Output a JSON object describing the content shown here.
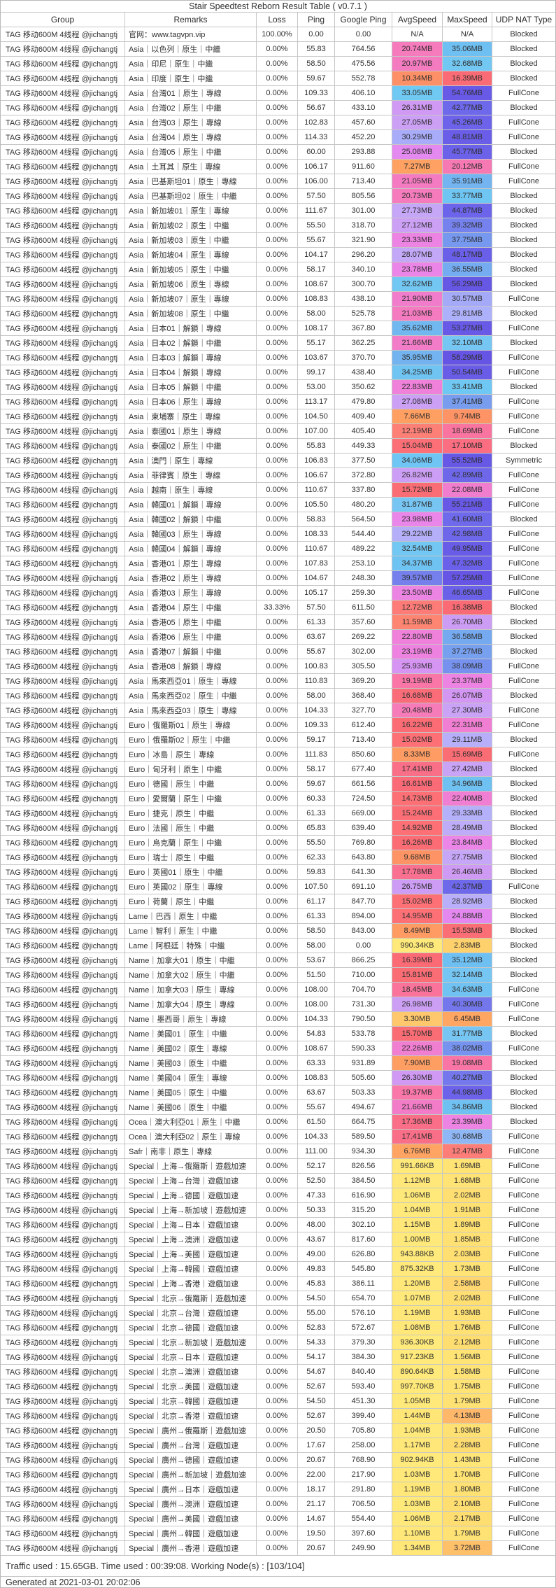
{
  "title": "Stair Speedtest Reborn Result Table ( v0.7.1 )",
  "columns": [
    "Group",
    "Remarks",
    "Loss",
    "Ping",
    "Google Ping",
    "AvgSpeed",
    "MaxSpeed",
    "UDP NAT Type"
  ],
  "group_name": "TAG 移动600M 4线程 @jichangtj",
  "rows": [
    [
      "官网：www.tagvpn.vip",
      "100.00%",
      "0.00",
      "0.00",
      "N/A",
      "N/A",
      "Blocked"
    ],
    [
      "Asia｜以色列｜原生｜中繼",
      "0.00%",
      "55.83",
      "764.56",
      "20.74MB",
      "35.06MB",
      "Blocked"
    ],
    [
      "Asia｜印尼｜原生｜中繼",
      "0.00%",
      "58.50",
      "475.56",
      "20.97MB",
      "32.68MB",
      "Blocked"
    ],
    [
      "Asia｜印度｜原生｜中繼",
      "0.00%",
      "59.67",
      "552.78",
      "10.34MB",
      "16.39MB",
      "Blocked"
    ],
    [
      "Asia｜台灣01｜原生｜專線",
      "0.00%",
      "109.33",
      "406.10",
      "33.05MB",
      "54.76MB",
      "FullCone"
    ],
    [
      "Asia｜台灣02｜原生｜中繼",
      "0.00%",
      "56.67",
      "433.10",
      "26.31MB",
      "42.77MB",
      "Blocked"
    ],
    [
      "Asia｜台灣03｜原生｜專線",
      "0.00%",
      "102.83",
      "457.60",
      "27.05MB",
      "45.26MB",
      "FullCone"
    ],
    [
      "Asia｜台灣04｜原生｜專線",
      "0.00%",
      "114.33",
      "452.20",
      "30.29MB",
      "48.81MB",
      "FullCone"
    ],
    [
      "Asia｜台灣05｜原生｜中繼",
      "0.00%",
      "60.00",
      "293.88",
      "25.08MB",
      "45.77MB",
      "Blocked"
    ],
    [
      "Asia｜土耳其｜原生｜專線",
      "0.00%",
      "106.17",
      "911.60",
      "7.27MB",
      "20.12MB",
      "FullCone"
    ],
    [
      "Asia｜巴基斯坦01｜原生｜專線",
      "0.00%",
      "106.00",
      "713.40",
      "21.05MB",
      "35.91MB",
      "FullCone"
    ],
    [
      "Asia｜巴基斯坦02｜原生｜中繼",
      "0.00%",
      "57.50",
      "805.56",
      "20.73MB",
      "33.77MB",
      "Blocked"
    ],
    [
      "Asia｜新加坡01｜原生｜專線",
      "0.00%",
      "111.67",
      "301.00",
      "27.73MB",
      "44.87MB",
      "Blocked"
    ],
    [
      "Asia｜新加坡02｜原生｜中繼",
      "0.00%",
      "55.50",
      "318.70",
      "27.12MB",
      "39.32MB",
      "Blocked"
    ],
    [
      "Asia｜新加坡03｜原生｜中繼",
      "0.00%",
      "55.67",
      "321.90",
      "23.33MB",
      "37.75MB",
      "Blocked"
    ],
    [
      "Asia｜新加坡04｜原生｜專線",
      "0.00%",
      "104.17",
      "296.20",
      "28.07MB",
      "48.17MB",
      "Blocked"
    ],
    [
      "Asia｜新加坡05｜原生｜中繼",
      "0.00%",
      "58.17",
      "340.10",
      "23.78MB",
      "36.55MB",
      "Blocked"
    ],
    [
      "Asia｜新加坡06｜原生｜專線",
      "0.00%",
      "108.67",
      "300.70",
      "32.62MB",
      "56.29MB",
      "Blocked"
    ],
    [
      "Asia｜新加坡07｜原生｜專線",
      "0.00%",
      "108.83",
      "438.10",
      "21.90MB",
      "30.57MB",
      "FullCone"
    ],
    [
      "Asia｜新加坡08｜原生｜中繼",
      "0.00%",
      "58.00",
      "525.78",
      "21.03MB",
      "29.81MB",
      "Blocked"
    ],
    [
      "Asia｜日本01｜解鎖｜專線",
      "0.00%",
      "108.17",
      "367.80",
      "35.62MB",
      "53.27MB",
      "FullCone"
    ],
    [
      "Asia｜日本02｜解鎖｜中繼",
      "0.00%",
      "55.17",
      "362.25",
      "21.66MB",
      "32.10MB",
      "Blocked"
    ],
    [
      "Asia｜日本03｜解鎖｜專線",
      "0.00%",
      "103.67",
      "370.70",
      "35.95MB",
      "58.29MB",
      "FullCone"
    ],
    [
      "Asia｜日本04｜解鎖｜專線",
      "0.00%",
      "99.17",
      "438.40",
      "34.25MB",
      "50.54MB",
      "FullCone"
    ],
    [
      "Asia｜日本05｜解鎖｜中繼",
      "0.00%",
      "53.00",
      "350.62",
      "22.83MB",
      "33.41MB",
      "Blocked"
    ],
    [
      "Asia｜日本06｜原生｜專線",
      "0.00%",
      "113.17",
      "479.80",
      "27.08MB",
      "37.41MB",
      "FullCone"
    ],
    [
      "Asia｜柬埔寨｜原生｜專線",
      "0.00%",
      "104.50",
      "409.40",
      "7.66MB",
      "9.74MB",
      "FullCone"
    ],
    [
      "Asia｜泰國01｜原生｜專線",
      "0.00%",
      "107.00",
      "405.40",
      "12.19MB",
      "18.69MB",
      "FullCone"
    ],
    [
      "Asia｜泰國02｜原生｜中繼",
      "0.00%",
      "55.83",
      "449.33",
      "15.04MB",
      "17.10MB",
      "Blocked"
    ],
    [
      "Asia｜澳門｜原生｜專線",
      "0.00%",
      "106.83",
      "377.50",
      "34.06MB",
      "55.52MB",
      "Symmetric"
    ],
    [
      "Asia｜菲律賓｜原生｜專線",
      "0.00%",
      "106.67",
      "372.80",
      "26.82MB",
      "42.89MB",
      "FullCone"
    ],
    [
      "Asia｜越南｜原生｜專線",
      "0.00%",
      "110.67",
      "337.80",
      "15.72MB",
      "22.08MB",
      "FullCone"
    ],
    [
      "Asia｜韓國01｜解鎖｜專線",
      "0.00%",
      "105.50",
      "480.20",
      "31.87MB",
      "55.21MB",
      "FullCone"
    ],
    [
      "Asia｜韓國02｜解鎖｜中繼",
      "0.00%",
      "58.83",
      "564.50",
      "23.98MB",
      "41.60MB",
      "Blocked"
    ],
    [
      "Asia｜韓國03｜原生｜專線",
      "0.00%",
      "108.33",
      "544.40",
      "29.22MB",
      "42.98MB",
      "FullCone"
    ],
    [
      "Asia｜韓國04｜解鎖｜專線",
      "0.00%",
      "110.67",
      "489.22",
      "32.54MB",
      "49.95MB",
      "FullCone"
    ],
    [
      "Asia｜香港01｜原生｜專線",
      "0.00%",
      "107.83",
      "253.10",
      "34.37MB",
      "47.32MB",
      "FullCone"
    ],
    [
      "Asia｜香港02｜原生｜專線",
      "0.00%",
      "104.67",
      "248.30",
      "39.57MB",
      "57.25MB",
      "FullCone"
    ],
    [
      "Asia｜香港03｜原生｜專線",
      "0.00%",
      "105.17",
      "259.30",
      "23.50MB",
      "46.65MB",
      "FullCone"
    ],
    [
      "Asia｜香港04｜原生｜中繼",
      "33.33%",
      "57.50",
      "611.50",
      "12.72MB",
      "16.38MB",
      "Blocked"
    ],
    [
      "Asia｜香港05｜原生｜中繼",
      "0.00%",
      "61.33",
      "357.60",
      "11.59MB",
      "26.70MB",
      "Blocked"
    ],
    [
      "Asia｜香港06｜原生｜中繼",
      "0.00%",
      "63.67",
      "269.22",
      "22.80MB",
      "36.58MB",
      "Blocked"
    ],
    [
      "Asia｜香港07｜解鎖｜中繼",
      "0.00%",
      "55.67",
      "302.00",
      "23.19MB",
      "37.27MB",
      "Blocked"
    ],
    [
      "Asia｜香港08｜解鎖｜專線",
      "0.00%",
      "100.83",
      "305.50",
      "25.93MB",
      "38.09MB",
      "FullCone"
    ],
    [
      "Asia｜馬來西亞01｜原生｜專線",
      "0.00%",
      "110.83",
      "369.20",
      "19.19MB",
      "23.37MB",
      "FullCone"
    ],
    [
      "Asia｜馬來西亞02｜原生｜中繼",
      "0.00%",
      "58.00",
      "368.40",
      "16.68MB",
      "26.07MB",
      "Blocked"
    ],
    [
      "Asia｜馬來西亞03｜原生｜專線",
      "0.00%",
      "104.33",
      "327.70",
      "20.48MB",
      "27.30MB",
      "FullCone"
    ],
    [
      "Euro｜俄羅斯01｜原生｜專線",
      "0.00%",
      "109.33",
      "612.40",
      "16.22MB",
      "22.31MB",
      "FullCone"
    ],
    [
      "Euro｜俄羅斯02｜原生｜中繼",
      "0.00%",
      "59.17",
      "713.40",
      "15.02MB",
      "29.11MB",
      "Blocked"
    ],
    [
      "Euro｜冰島｜原生｜專線",
      "0.00%",
      "111.83",
      "850.60",
      "8.33MB",
      "15.69MB",
      "FullCone"
    ],
    [
      "Euro｜匈牙利｜原生｜中繼",
      "0.00%",
      "58.17",
      "677.40",
      "17.41MB",
      "27.42MB",
      "Blocked"
    ],
    [
      "Euro｜德國｜原生｜中繼",
      "0.00%",
      "59.67",
      "661.56",
      "16.61MB",
      "34.96MB",
      "Blocked"
    ],
    [
      "Euro｜愛爾蘭｜原生｜中繼",
      "0.00%",
      "60.33",
      "724.50",
      "14.73MB",
      "22.40MB",
      "Blocked"
    ],
    [
      "Euro｜捷克｜原生｜中繼",
      "0.00%",
      "61.33",
      "669.00",
      "15.24MB",
      "29.33MB",
      "Blocked"
    ],
    [
      "Euro｜法國｜原生｜中繼",
      "0.00%",
      "65.83",
      "639.40",
      "14.92MB",
      "28.49MB",
      "Blocked"
    ],
    [
      "Euro｜烏克蘭｜原生｜中繼",
      "0.00%",
      "55.50",
      "769.80",
      "16.26MB",
      "23.84MB",
      "Blocked"
    ],
    [
      "Euro｜瑞士｜原生｜中繼",
      "0.00%",
      "62.33",
      "643.80",
      "9.68MB",
      "27.75MB",
      "Blocked"
    ],
    [
      "Euro｜英國01｜原生｜中繼",
      "0.00%",
      "59.83",
      "641.30",
      "17.78MB",
      "26.46MB",
      "Blocked"
    ],
    [
      "Euro｜英國02｜原生｜專線",
      "0.00%",
      "107.50",
      "691.10",
      "26.75MB",
      "42.37MB",
      "FullCone"
    ],
    [
      "Euro｜荷蘭｜原生｜中繼",
      "0.00%",
      "61.17",
      "847.70",
      "15.02MB",
      "28.92MB",
      "Blocked"
    ],
    [
      "Lame｜巴西｜原生｜中繼",
      "0.00%",
      "61.33",
      "894.00",
      "14.95MB",
      "24.88MB",
      "Blocked"
    ],
    [
      "Lame｜智利｜原生｜中繼",
      "0.00%",
      "58.50",
      "843.00",
      "8.49MB",
      "15.53MB",
      "Blocked"
    ],
    [
      "Lame｜阿根廷｜特殊｜中繼",
      "0.00%",
      "58.00",
      "0.00",
      "990.34KB",
      "2.83MB",
      "Blocked"
    ],
    [
      "Name｜加拿大01｜原生｜中繼",
      "0.00%",
      "53.67",
      "866.25",
      "16.39MB",
      "35.12MB",
      "Blocked"
    ],
    [
      "Name｜加拿大02｜原生｜中繼",
      "0.00%",
      "51.50",
      "710.00",
      "15.81MB",
      "32.14MB",
      "Blocked"
    ],
    [
      "Name｜加拿大03｜原生｜專線",
      "0.00%",
      "108.00",
      "704.70",
      "18.45MB",
      "34.63MB",
      "FullCone"
    ],
    [
      "Name｜加拿大04｜原生｜專線",
      "0.00%",
      "108.00",
      "731.30",
      "26.98MB",
      "40.30MB",
      "FullCone"
    ],
    [
      "Name｜墨西哥｜原生｜專線",
      "0.00%",
      "104.33",
      "790.50",
      "3.30MB",
      "6.45MB",
      "FullCone"
    ],
    [
      "Name｜美國01｜原生｜中繼",
      "0.00%",
      "54.83",
      "533.78",
      "15.70MB",
      "31.77MB",
      "Blocked"
    ],
    [
      "Name｜美國02｜原生｜專線",
      "0.00%",
      "108.67",
      "590.33",
      "22.26MB",
      "38.02MB",
      "FullCone"
    ],
    [
      "Name｜美國03｜原生｜中繼",
      "0.00%",
      "63.33",
      "931.89",
      "7.90MB",
      "19.08MB",
      "Blocked"
    ],
    [
      "Name｜美國04｜原生｜專線",
      "0.00%",
      "108.83",
      "505.60",
      "26.30MB",
      "40.27MB",
      "Blocked"
    ],
    [
      "Name｜美國05｜原生｜中繼",
      "0.00%",
      "63.67",
      "503.33",
      "19.37MB",
      "44.98MB",
      "Blocked"
    ],
    [
      "Name｜美國06｜原生｜中繼",
      "0.00%",
      "55.67",
      "494.67",
      "21.66MB",
      "34.86MB",
      "Blocked"
    ],
    [
      "Ocea｜澳大利亞01｜原生｜中繼",
      "0.00%",
      "61.50",
      "664.75",
      "17.36MB",
      "23.39MB",
      "Blocked"
    ],
    [
      "Ocea｜澳大利亞02｜原生｜專線",
      "0.00%",
      "104.33",
      "589.50",
      "17.41MB",
      "30.68MB",
      "FullCone"
    ],
    [
      "Safr｜南非｜原生｜專線",
      "0.00%",
      "111.00",
      "934.30",
      "6.76MB",
      "12.47MB",
      "FullCone"
    ],
    [
      "Special｜上海→俄羅斯｜遊戲加速",
      "0.00%",
      "52.17",
      "826.56",
      "991.66KB",
      "1.69MB",
      "FullCone"
    ],
    [
      "Special｜上海→台灣｜遊戲加速",
      "0.00%",
      "52.50",
      "384.50",
      "1.12MB",
      "1.68MB",
      "FullCone"
    ],
    [
      "Special｜上海→德國｜遊戲加速",
      "0.00%",
      "47.33",
      "616.90",
      "1.06MB",
      "2.02MB",
      "FullCone"
    ],
    [
      "Special｜上海→新加坡｜遊戲加速",
      "0.00%",
      "50.33",
      "315.20",
      "1.04MB",
      "1.91MB",
      "FullCone"
    ],
    [
      "Special｜上海→日本｜遊戲加速",
      "0.00%",
      "48.00",
      "302.10",
      "1.15MB",
      "1.89MB",
      "FullCone"
    ],
    [
      "Special｜上海→澳洲｜遊戲加速",
      "0.00%",
      "43.67",
      "817.60",
      "1.00MB",
      "1.85MB",
      "FullCone"
    ],
    [
      "Special｜上海→美國｜遊戲加速",
      "0.00%",
      "49.00",
      "626.80",
      "943.88KB",
      "2.03MB",
      "FullCone"
    ],
    [
      "Special｜上海→韓國｜遊戲加速",
      "0.00%",
      "49.83",
      "545.80",
      "875.32KB",
      "1.73MB",
      "FullCone"
    ],
    [
      "Special｜上海→香港｜遊戲加速",
      "0.00%",
      "45.83",
      "386.11",
      "1.20MB",
      "2.58MB",
      "FullCone"
    ],
    [
      "Special｜北京→俄羅斯｜遊戲加速",
      "0.00%",
      "54.50",
      "654.70",
      "1.07MB",
      "2.02MB",
      "FullCone"
    ],
    [
      "Special｜北京→台灣｜遊戲加速",
      "0.00%",
      "55.00",
      "576.10",
      "1.19MB",
      "1.93MB",
      "FullCone"
    ],
    [
      "Special｜北京→德國｜遊戲加速",
      "0.00%",
      "52.83",
      "572.67",
      "1.08MB",
      "1.76MB",
      "FullCone"
    ],
    [
      "Special｜北京→新加坡｜遊戲加速",
      "0.00%",
      "54.33",
      "379.30",
      "936.30KB",
      "2.12MB",
      "FullCone"
    ],
    [
      "Special｜北京→日本｜遊戲加速",
      "0.00%",
      "54.17",
      "384.30",
      "917.23KB",
      "1.56MB",
      "FullCone"
    ],
    [
      "Special｜北京→澳洲｜遊戲加速",
      "0.00%",
      "54.67",
      "840.40",
      "890.64KB",
      "1.58MB",
      "FullCone"
    ],
    [
      "Special｜北京→美國｜遊戲加速",
      "0.00%",
      "52.67",
      "593.40",
      "997.70KB",
      "1.75MB",
      "FullCone"
    ],
    [
      "Special｜北京→韓國｜遊戲加速",
      "0.00%",
      "54.50",
      "451.30",
      "1.05MB",
      "1.79MB",
      "FullCone"
    ],
    [
      "Special｜北京→香港｜遊戲加速",
      "0.00%",
      "52.67",
      "399.40",
      "1.44MB",
      "4.13MB",
      "FullCone"
    ],
    [
      "Special｜廣州→俄羅斯｜遊戲加速",
      "0.00%",
      "20.50",
      "705.80",
      "1.04MB",
      "1.93MB",
      "FullCone"
    ],
    [
      "Special｜廣州→台灣｜遊戲加速",
      "0.00%",
      "17.67",
      "258.00",
      "1.17MB",
      "2.28MB",
      "FullCone"
    ],
    [
      "Special｜廣州→德國｜遊戲加速",
      "0.00%",
      "20.67",
      "768.90",
      "902.94KB",
      "1.43MB",
      "FullCone"
    ],
    [
      "Special｜廣州→新加坡｜遊戲加速",
      "0.00%",
      "22.00",
      "217.90",
      "1.03MB",
      "1.70MB",
      "FullCone"
    ],
    [
      "Special｜廣州→日本｜遊戲加速",
      "0.00%",
      "18.17",
      "291.80",
      "1.19MB",
      "1.80MB",
      "FullCone"
    ],
    [
      "Special｜廣州→澳洲｜遊戲加速",
      "0.00%",
      "21.17",
      "706.50",
      "1.03MB",
      "2.10MB",
      "FullCone"
    ],
    [
      "Special｜廣州→美國｜遊戲加速",
      "0.00%",
      "14.67",
      "554.40",
      "1.06MB",
      "2.17MB",
      "FullCone"
    ],
    [
      "Special｜廣州→韓國｜遊戲加速",
      "0.00%",
      "19.50",
      "397.60",
      "1.10MB",
      "1.79MB",
      "FullCone"
    ],
    [
      "Special｜廣州→香港｜遊戲加速",
      "0.00%",
      "20.67",
      "249.90",
      "1.34MB",
      "3.72MB",
      "FullCone"
    ]
  ],
  "footer": {
    "line1": "Traffic used : 15.65GB. Time used : 00:39:08. Working Node(s) : [103/104]",
    "line2": "Generated at 2021-03-01 20:02:06"
  },
  "colors": {
    "grid": "#c6c6c6",
    "text": "#303030",
    "na_background": "#FFFFFF",
    "speed_ramp": [
      [
        0.85,
        "#FFEA7B"
      ],
      [
        1.3,
        "#FFE778"
      ],
      [
        1.8,
        "#FFE273"
      ],
      [
        2.3,
        "#FFDC70"
      ],
      [
        2.9,
        "#FFCF6D"
      ],
      [
        3.5,
        "#FFC46B"
      ],
      [
        4.3,
        "#FFB568"
      ],
      [
        5.5,
        "#FFAC65"
      ],
      [
        7.0,
        "#FFA262"
      ],
      [
        8.6,
        "#FF9B63"
      ],
      [
        10.4,
        "#FE9067"
      ],
      [
        12.4,
        "#FD7E79"
      ],
      [
        14.2,
        "#FC7276"
      ],
      [
        16.5,
        "#FB6B75"
      ],
      [
        17.8,
        "#FA7090"
      ],
      [
        19.2,
        "#F976A7"
      ],
      [
        20.6,
        "#F57BBB"
      ],
      [
        21.9,
        "#F17CCB"
      ],
      [
        23.1,
        "#EE82E0"
      ],
      [
        24.1,
        "#EA86EB"
      ],
      [
        25.2,
        "#E289F0"
      ],
      [
        26.3,
        "#D099F4"
      ],
      [
        27.4,
        "#C9A3F6"
      ],
      [
        28.5,
        "#BFACF8"
      ],
      [
        29.6,
        "#B0B1FA"
      ],
      [
        30.6,
        "#A4AAF8"
      ],
      [
        30.75,
        "#7CC2F3"
      ],
      [
        33.2,
        "#6FC9F3"
      ],
      [
        35.1,
        "#6FC0F2"
      ],
      [
        36.2,
        "#74B0F0"
      ],
      [
        37.5,
        "#789CEF"
      ],
      [
        38.6,
        "#7489EE"
      ],
      [
        39.8,
        "#767EED"
      ],
      [
        41.2,
        "#6F6BEB"
      ],
      [
        44.0,
        "#6D65EA"
      ],
      [
        47.0,
        "#6B60E9"
      ],
      [
        50.8,
        "#695CE7"
      ],
      [
        54.0,
        "#685AE6"
      ],
      [
        58.5,
        "#6655E4"
      ]
    ]
  }
}
